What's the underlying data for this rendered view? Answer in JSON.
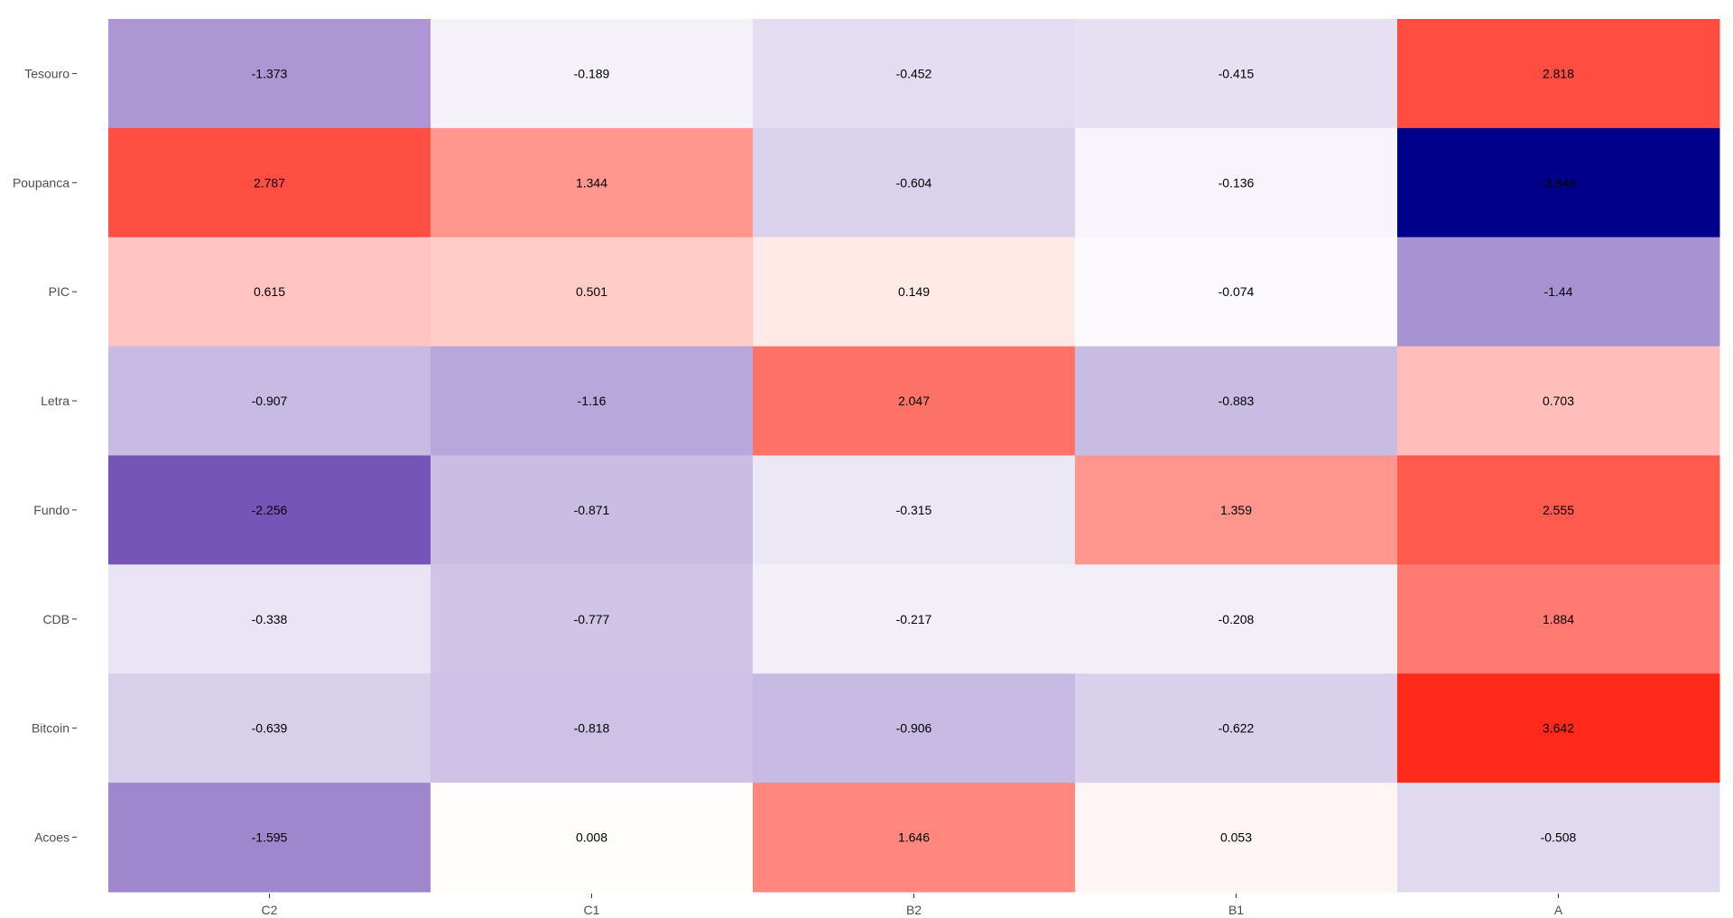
{
  "chart_data": {
    "type": "heatmap",
    "title": "",
    "xlabel": "",
    "ylabel": "",
    "x_categories": [
      "C2",
      "C1",
      "B2",
      "B1",
      "A"
    ],
    "y_categories": [
      "Tesouro",
      "Poupanca",
      "PIC",
      "Letra",
      "Fundo",
      "CDB",
      "Bitcoin",
      "Acoes"
    ],
    "values": [
      [
        -1.373,
        -0.189,
        -0.452,
        -0.415,
        2.818
      ],
      [
        2.787,
        1.344,
        -0.604,
        -0.136,
        -3.846
      ],
      [
        0.615,
        0.501,
        0.149,
        -0.074,
        -1.44
      ],
      [
        -0.907,
        -1.16,
        2.047,
        -0.883,
        0.703
      ],
      [
        -2.256,
        -0.871,
        -0.315,
        1.359,
        2.555
      ],
      [
        -0.338,
        -0.777,
        -0.217,
        -0.208,
        1.884
      ],
      [
        -0.639,
        -0.818,
        -0.906,
        -0.622,
        3.642
      ],
      [
        -1.595,
        0.008,
        1.646,
        0.053,
        -0.508
      ]
    ],
    "color_scale": {
      "low": "#00008b",
      "mid": "#ffffff",
      "high": "#ff2a1a",
      "min": -3.846,
      "max": 3.642
    },
    "legend": "none",
    "grid": false
  }
}
